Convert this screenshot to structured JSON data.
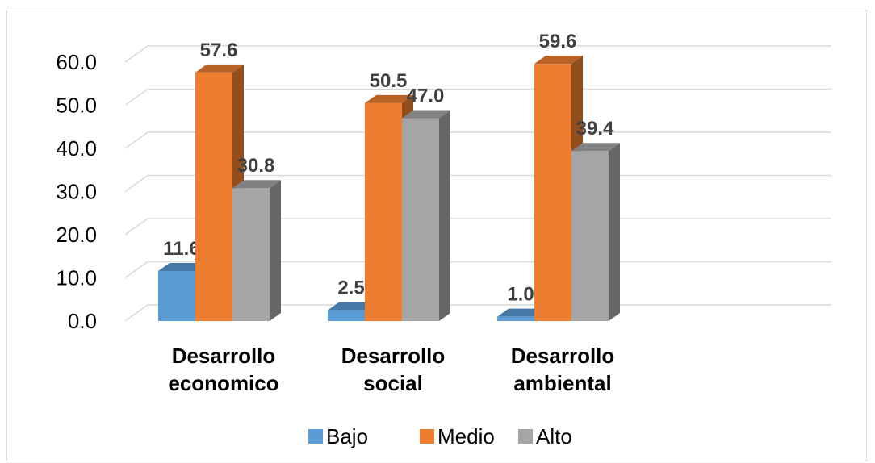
{
  "chart_data": {
    "type": "bar",
    "title": "",
    "xlabel": "",
    "ylabel": "",
    "categories": [
      [
        "Desarrollo",
        "economico"
      ],
      [
        "Desarrollo",
        "social"
      ],
      [
        "Desarrollo",
        "ambiental"
      ]
    ],
    "series": [
      {
        "name": "Bajo",
        "color": "#5b9bd5",
        "values": [
          11.6,
          2.5,
          1.0
        ],
        "labels": [
          "11.6",
          "2.5",
          "1.0"
        ]
      },
      {
        "name": "Medio",
        "color": "#ed7d31",
        "values": [
          57.6,
          50.5,
          59.6
        ],
        "labels": [
          "57.6",
          "50.5",
          "59.6"
        ]
      },
      {
        "name": "Alto",
        "color": "#a5a5a5",
        "values": [
          30.8,
          47.0,
          39.4
        ],
        "labels": [
          "30.8",
          "47.0",
          "39.4"
        ]
      }
    ],
    "ylim": [
      0,
      60
    ],
    "yticks": [
      "0.0",
      "10.0",
      "20.0",
      "30.0",
      "40.0",
      "50.0",
      "60.0"
    ],
    "grid": true,
    "three_d": true,
    "legend": "bottom"
  }
}
